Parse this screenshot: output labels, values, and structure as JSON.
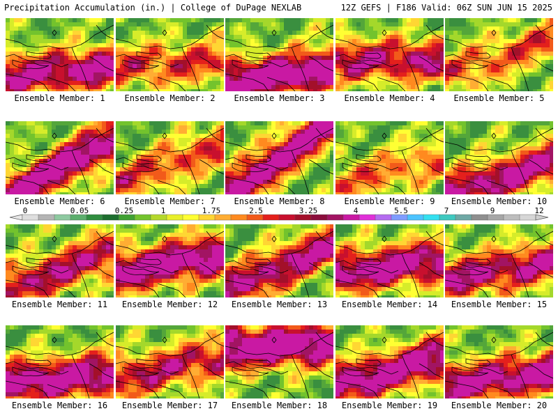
{
  "header": {
    "title_left": "Precipitation Accumulation (in.) | College of DuPage NEXLAB",
    "title_right": "12Z GEFS | F186 Valid: 06Z SUN JUN 15 2025"
  },
  "panels": [
    {
      "label": "Ensemble Member: 1",
      "heavy_band": 0.7,
      "axis_tilt": 0.1,
      "intensity": 0.85
    },
    {
      "label": "Ensemble Member: 2",
      "heavy_band": 0.6,
      "axis_tilt": 0.05,
      "intensity": 0.55
    },
    {
      "label": "Ensemble Member: 3",
      "heavy_band": 0.75,
      "axis_tilt": 0.15,
      "intensity": 1.0
    },
    {
      "label": "Ensemble Member: 4",
      "heavy_band": 0.55,
      "axis_tilt": 0.0,
      "intensity": 0.75
    },
    {
      "label": "Ensemble Member: 5",
      "heavy_band": 0.5,
      "axis_tilt": 0.4,
      "intensity": 0.5
    },
    {
      "label": "Ensemble Member: 6",
      "heavy_band": 0.6,
      "axis_tilt": 0.6,
      "intensity": 0.95
    },
    {
      "label": "Ensemble Member: 7",
      "heavy_band": 0.55,
      "axis_tilt": 0.45,
      "intensity": 0.55
    },
    {
      "label": "Ensemble Member: 8",
      "heavy_band": 0.45,
      "axis_tilt": 0.8,
      "intensity": 1.0
    },
    {
      "label": "Ensemble Member: 9",
      "heavy_band": 0.65,
      "axis_tilt": 0.3,
      "intensity": 0.45
    },
    {
      "label": "Ensemble Member: 10",
      "heavy_band": 0.75,
      "axis_tilt": 0.35,
      "intensity": 0.85
    },
    {
      "label": "Ensemble Member: 11",
      "heavy_band": 0.6,
      "axis_tilt": 0.4,
      "intensity": 0.75
    },
    {
      "label": "Ensemble Member: 12",
      "heavy_band": 0.5,
      "axis_tilt": 0.2,
      "intensity": 0.95
    },
    {
      "label": "Ensemble Member: 13",
      "heavy_band": 0.55,
      "axis_tilt": 0.5,
      "intensity": 0.85
    },
    {
      "label": "Ensemble Member: 14",
      "heavy_band": 0.55,
      "axis_tilt": 0.15,
      "intensity": 0.9
    },
    {
      "label": "Ensemble Member: 15",
      "heavy_band": 0.6,
      "axis_tilt": 0.2,
      "intensity": 0.8
    },
    {
      "label": "Ensemble Member: 16",
      "heavy_band": 0.7,
      "axis_tilt": 0.1,
      "intensity": 0.95
    },
    {
      "label": "Ensemble Member: 17",
      "heavy_band": 0.55,
      "axis_tilt": 0.25,
      "intensity": 0.7
    },
    {
      "label": "Ensemble Member: 18",
      "heavy_band": 0.25,
      "axis_tilt": 0.05,
      "intensity": 1.0
    },
    {
      "label": "Ensemble Member: 19",
      "heavy_band": 0.6,
      "axis_tilt": 0.3,
      "intensity": 0.95
    },
    {
      "label": "Ensemble Member: 20",
      "heavy_band": 0.7,
      "axis_tilt": 0.15,
      "intensity": 0.9
    }
  ],
  "colorbar": {
    "labels": [
      "0",
      "0.05",
      "0.25",
      "1",
      "1.75",
      "2.5",
      "3.25",
      "4",
      "5.5",
      "7",
      "9",
      "12"
    ],
    "colors": [
      "#dedede",
      "#b4b4b4",
      "#8ec9a0",
      "#5cae6d",
      "#2f8d3f",
      "#1d6e2e",
      "#3fa032",
      "#73c32d",
      "#b4d82c",
      "#e8ef2a",
      "#ffff33",
      "#ffd633",
      "#ffad33",
      "#ff8a1f",
      "#f25a1a",
      "#e4201c",
      "#c8102e",
      "#a3102a",
      "#8b0d3c",
      "#a21463",
      "#c919a3",
      "#e030d8",
      "#b46cf0",
      "#7f9cff",
      "#4cc3ff",
      "#33e0f0",
      "#3fc9c0",
      "#6fa8a5",
      "#8f8f8f",
      "#a6a6a6",
      "#bdbdbd",
      "#d6d6d6"
    ]
  }
}
